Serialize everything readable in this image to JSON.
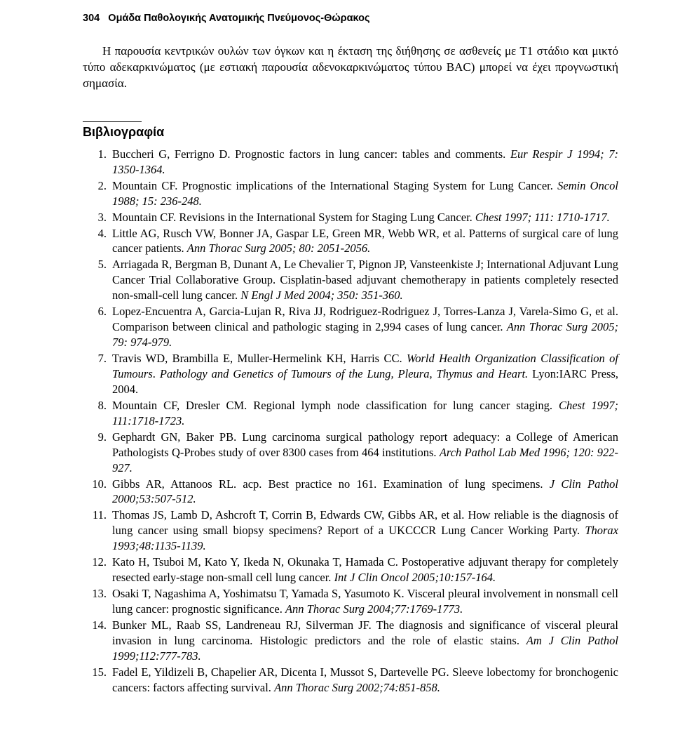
{
  "header": {
    "page_number": "304",
    "section_title": "Ομάδα Παθολογικής Ανατομικής Πνεύμονος-Θώρακος"
  },
  "paragraph": "Η παρουσία κεντρικών ουλών των όγκων και η έκταση της διήθησης σε ασθενείς με Τ1 στάδιο και μικτό τύπο αδεκαρκινώματος (με εστιακή παρουσία αδενοκαρκινώμα­τος τύπου BAC) μπορεί να έχει προγνωστική σημασία.",
  "bibliography_heading": "Βιβλιογραφία",
  "references": [
    {
      "n": "1.",
      "plain": "Buccheri G, Ferrigno D. Prognostic factors in lung cancer: tables and comments. ",
      "it": "Eur Respir J 1994; 7: 1350-1364."
    },
    {
      "n": "2.",
      "plain": "Mountain CF. Prognostic implications of the International Staging System for Lung Cancer. ",
      "it": "Semin Oncol 1988; 15: 236-248."
    },
    {
      "n": "3.",
      "plain": "Mountain CF. Revisions in the International System for Staging Lung Cancer. ",
      "it": "Chest 1997; 111: 1710-1717."
    },
    {
      "n": "4.",
      "plain": "Little AG, Rusch VW, Bonner JA, Gaspar LE, Green MR, Webb WR, et al. Patterns of surgical care of lung cancer patients. ",
      "it": "Ann Thorac Surg 2005; 80: 2051-2056."
    },
    {
      "n": "5.",
      "plain": "Arriagada R, Bergman B, Dunant A, Le Chevalier T, Pignon JP, Vansteenkiste J; International Adjuvant Lung Cancer Trial Collaborative Group. Cisplatin-based adjuvant chemotherapy in patients completely resected non-small-cell lung cancer. ",
      "it": "N Engl J Med 2004; 350: 351-360."
    },
    {
      "n": "6.",
      "plain": "Lopez-Encuentra A, Garcia-Lujan R, Riva JJ, Rodriguez-Rodriguez J, Torres-Lanza J, Varela-Simo G, et al. Comparison between clinical and pathologic staging in 2,994 cases of lung cancer. ",
      "it": "Ann Thorac Surg 2005; 79: 974-979."
    },
    {
      "n": "7.",
      "plain": "Travis WD, Brambilla E, Muller-Hermelink KH, Harris CC. ",
      "it": "World Health Organization Classification of Tumours",
      "plain2": ". ",
      "it2": "Pathology and Genetics of Tumours of the Lung, Pleura, Thymus and Heart. ",
      "plain3": "Lyon:IARC Press, 2004."
    },
    {
      "n": "8.",
      "plain": "Mountain CF, Dresler CM. Regional lymph node classification for lung cancer staging. ",
      "it": "Chest 1997; 111:1718-1723."
    },
    {
      "n": "9.",
      "plain": "Gephardt GN, Baker PB. Lung carcinoma surgical pathology report adequacy: a College of American Pathologists Q-Probes study of over 8300 cases from 464 institutions. ",
      "it": "Arch Pathol Lab Med 1996; 120: 922-927."
    },
    {
      "n": "10.",
      "plain": "Gibbs AR, Attanoos RL. acp. Best practice no 161. Examination of lung specimens. ",
      "it": "J Clin Pathol 2000;53:507-512."
    },
    {
      "n": "11.",
      "plain": "Thomas JS, Lamb D, Ashcroft T, Corrin B, Edwards CW, Gibbs AR, et al. How reliable is the diagnosis of lung cancer using small biopsy specimens? Report of a UKCCCR Lung Cancer Working Party. ",
      "it": "Thorax 1993;48:1135-1139."
    },
    {
      "n": "12.",
      "plain": "Kato H, Tsuboi M, Kato Y, Ikeda N, Okunaka T, Hamada C. Postoperative adjuvant therapy for completely resected early-stage non-small cell lung cancer. ",
      "it": "Int J Clin Oncol 2005;10:157-164."
    },
    {
      "n": "13.",
      "plain": "Osaki T, Nagashima A, Yoshimatsu T, Yamada S, Yasumoto K. Visceral pleural involvement in nonsmall cell lung cancer: prognostic significance. ",
      "it": "Ann Thorac Surg 2004;77:1769-1773."
    },
    {
      "n": "14.",
      "plain": "Bunker ML, Raab SS, Landreneau RJ, Silverman JF. The diagnosis and significance of visceral pleural invasion in lung carcinoma. Histologic predictors and the role of elastic stains. ",
      "it": "Am J Clin Pathol 1999;112:777-783."
    },
    {
      "n": "15.",
      "plain": "Fadel E, Yildizeli B, Chapelier AR, Dicenta I, Mussot S, Dartevelle PG. Sleeve lobectomy for bronchogenic cancers: factors affecting survival. ",
      "it": "Ann Thorac Surg 2002;74:851-858."
    }
  ]
}
